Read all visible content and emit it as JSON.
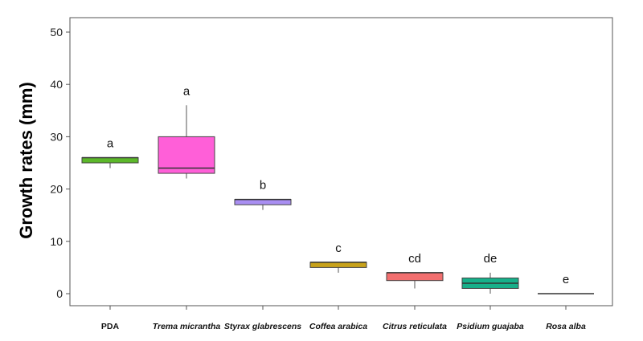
{
  "chart_data": {
    "type": "boxplot",
    "ylabel": "Growth rates (mm)",
    "xlabel": "",
    "ylim": [
      -2,
      52
    ],
    "yticks": [
      0,
      10,
      20,
      30,
      40,
      50
    ],
    "grid": false,
    "categories": [
      {
        "label": "PDA",
        "italic": false
      },
      {
        "label": "Trema  micrantha",
        "italic": true
      },
      {
        "label": "Styrax glabrescens",
        "italic": true
      },
      {
        "label": "Coffea arabica",
        "italic": true
      },
      {
        "label": "Citrus reticulata",
        "italic": true
      },
      {
        "label": "Psidium guajaba",
        "italic": true
      },
      {
        "label": "Rosa alba",
        "italic": true
      }
    ],
    "boxes": [
      {
        "min": 24,
        "q1": 25,
        "median": 26,
        "q3": 26,
        "max": 26,
        "color": "#5cb82a",
        "letter": "a"
      },
      {
        "min": 22,
        "q1": 23,
        "median": 24,
        "q3": 30,
        "max": 36,
        "color": "#ff5fd8",
        "letter": "a"
      },
      {
        "min": 16,
        "q1": 17,
        "median": 18,
        "q3": 18,
        "max": 18,
        "color": "#a98ef2",
        "letter": "b"
      },
      {
        "min": 4,
        "q1": 5,
        "median": 6,
        "q3": 6,
        "max": 6,
        "color": "#c8a21a",
        "letter": "c"
      },
      {
        "min": 1,
        "q1": 2.5,
        "median": 4,
        "q3": 4,
        "max": 4,
        "color": "#f26f6f",
        "letter": "cd"
      },
      {
        "min": 0,
        "q1": 1,
        "median": 2,
        "q3": 3,
        "max": 4,
        "color": "#17b08a",
        "letter": "de"
      },
      {
        "min": 0,
        "q1": 0,
        "median": 0,
        "q3": 0,
        "max": 0,
        "color": "#888888",
        "letter": "e"
      }
    ]
  }
}
